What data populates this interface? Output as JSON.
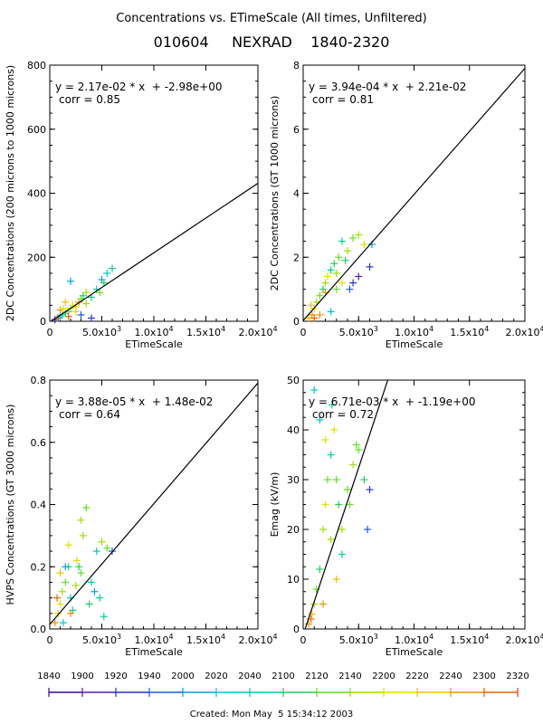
{
  "header": {
    "title": "Concentrations vs. ETimeScale (All times, Unfiltered)",
    "subtitle": "010604     NEXRAD    1840-2320"
  },
  "footer": {
    "created": "Created: Mon May  5 15:34:12 2003"
  },
  "colorbar": {
    "labels": [
      "1840",
      "1900",
      "1920",
      "1940",
      "2000",
      "2020",
      "2040",
      "2100",
      "2120",
      "2140",
      "2200",
      "2220",
      "2240",
      "2300",
      "2320"
    ],
    "colors": [
      "#3a0a8a",
      "#5a1ab0",
      "#2b2fd0",
      "#1a5ae8",
      "#00a0e0",
      "#00c8c8",
      "#00d0a0",
      "#20d060",
      "#60e020",
      "#a0e000",
      "#e0e000",
      "#f0c000",
      "#f09000",
      "#f06000",
      "#e83020"
    ]
  },
  "tick_x_labels": [
    "0",
    "5.0x10^3",
    "1.0x10^4",
    "1.5x10^4",
    "2.0x10^4"
  ],
  "chart_data": [
    {
      "type": "scatter",
      "ylabel": "2DC Concentrations (200 microns to 1000 microns)",
      "xlabel": "ETimeScale",
      "xlim": [
        0,
        20000
      ],
      "ylim": [
        0,
        800
      ],
      "yticks": [
        "0",
        "200",
        "400",
        "600",
        "800"
      ],
      "fit": {
        "slope": 0.0217,
        "intercept": -2.98
      },
      "equation": "y = 2.17e-02 * x  + -2.98e+00",
      "corr": "corr = 0.85",
      "points": [
        [
          500,
          5,
          2
        ],
        [
          800,
          10,
          3
        ],
        [
          1000,
          15,
          5
        ],
        [
          1200,
          20,
          6
        ],
        [
          1500,
          25,
          7
        ],
        [
          1800,
          30,
          8
        ],
        [
          2000,
          40,
          9
        ],
        [
          2200,
          50,
          10
        ],
        [
          2500,
          45,
          11
        ],
        [
          2800,
          60,
          12
        ],
        [
          3000,
          70,
          8
        ],
        [
          3200,
          80,
          7
        ],
        [
          3500,
          90,
          9
        ],
        [
          4000,
          75,
          6
        ],
        [
          4500,
          100,
          5
        ],
        [
          5000,
          130,
          4
        ],
        [
          5500,
          150,
          5
        ],
        [
          6000,
          165,
          6
        ],
        [
          2000,
          125,
          4
        ],
        [
          1500,
          60,
          11
        ],
        [
          1000,
          35,
          12
        ],
        [
          3000,
          20,
          3
        ],
        [
          4000,
          10,
          2
        ],
        [
          2500,
          30,
          10
        ],
        [
          1800,
          15,
          13
        ],
        [
          3500,
          55,
          9
        ],
        [
          5200,
          120,
          7
        ],
        [
          4800,
          90,
          8
        ],
        [
          700,
          8,
          12
        ],
        [
          1300,
          40,
          10
        ]
      ]
    },
    {
      "type": "scatter",
      "ylabel": "2DC Concentrations (GT 1000 microns)",
      "xlabel": "ETimeScale",
      "xlim": [
        0,
        20000
      ],
      "ylim": [
        0,
        8
      ],
      "yticks": [
        "0",
        "2",
        "4",
        "6",
        "8"
      ],
      "fit": {
        "slope": 0.000394,
        "intercept": 0.0221
      },
      "equation": "y = 3.94e-04 * x  + 2.21e-02",
      "corr": "corr = 0.81",
      "points": [
        [
          500,
          0.1,
          11
        ],
        [
          800,
          0.2,
          12
        ],
        [
          1000,
          0.4,
          10
        ],
        [
          1200,
          0.6,
          9
        ],
        [
          1500,
          0.8,
          8
        ],
        [
          1800,
          1.0,
          7
        ],
        [
          2000,
          1.2,
          9
        ],
        [
          2200,
          1.4,
          10
        ],
        [
          2500,
          1.6,
          6
        ],
        [
          2800,
          1.8,
          7
        ],
        [
          3000,
          1.5,
          9
        ],
        [
          3200,
          2.0,
          8
        ],
        [
          3500,
          2.5,
          6
        ],
        [
          4000,
          2.2,
          9
        ],
        [
          4500,
          2.6,
          8
        ],
        [
          5000,
          2.7,
          9
        ],
        [
          5500,
          2.4,
          10
        ],
        [
          6000,
          1.7,
          2
        ],
        [
          5000,
          1.4,
          1
        ],
        [
          4500,
          1.2,
          2
        ],
        [
          6200,
          2.4,
          4
        ],
        [
          2500,
          0.3,
          5
        ],
        [
          1500,
          0.2,
          12
        ],
        [
          700,
          0.5,
          11
        ],
        [
          3000,
          1.0,
          8
        ],
        [
          3800,
          1.9,
          7
        ],
        [
          2000,
          0.9,
          12
        ],
        [
          4200,
          1.0,
          3
        ],
        [
          1000,
          0.1,
          13
        ],
        [
          3500,
          1.2,
          10
        ]
      ]
    },
    {
      "type": "scatter",
      "ylabel": "HVPS Concentrations (GT 3000 microns)",
      "xlabel": "ETimeScale",
      "xlim": [
        0,
        20000
      ],
      "ylim": [
        0,
        0.8
      ],
      "yticks": [
        "0.0",
        "0.2",
        "0.4",
        "0.6",
        "0.8"
      ],
      "fit": {
        "slope": 3.88e-05,
        "intercept": 0.0148
      },
      "equation": "y = 3.88e-05 * x  + 1.48e-02",
      "corr": "corr = 0.64",
      "points": [
        [
          500,
          0.02,
          12
        ],
        [
          800,
          0.05,
          11
        ],
        [
          1000,
          0.08,
          10
        ],
        [
          1200,
          0.12,
          9
        ],
        [
          1500,
          0.15,
          8
        ],
        [
          1800,
          0.2,
          7
        ],
        [
          2000,
          0.1,
          5
        ],
        [
          2200,
          0.06,
          6
        ],
        [
          2500,
          0.14,
          9
        ],
        [
          2800,
          0.2,
          7
        ],
        [
          3000,
          0.18,
          8
        ],
        [
          3200,
          0.3,
          9
        ],
        [
          3500,
          0.39,
          8
        ],
        [
          4000,
          0.15,
          6
        ],
        [
          4500,
          0.25,
          5
        ],
        [
          5000,
          0.28,
          9
        ],
        [
          5500,
          0.26,
          8
        ],
        [
          6000,
          0.25,
          3
        ],
        [
          1500,
          0.2,
          4
        ],
        [
          1000,
          0.18,
          11
        ],
        [
          3000,
          0.35,
          9
        ],
        [
          2000,
          0.05,
          12
        ],
        [
          4800,
          0.1,
          6
        ],
        [
          3800,
          0.08,
          7
        ],
        [
          700,
          0.1,
          13
        ],
        [
          2600,
          0.22,
          10
        ],
        [
          1300,
          0.02,
          5
        ],
        [
          4300,
          0.12,
          4
        ],
        [
          5200,
          0.04,
          6
        ],
        [
          1800,
          0.27,
          10
        ]
      ]
    },
    {
      "type": "scatter",
      "ylabel": "Emag (kV/m)",
      "xlabel": "ETimeScale",
      "xlim": [
        0,
        20000
      ],
      "ylim": [
        0,
        50
      ],
      "yticks": [
        "0",
        "10",
        "20",
        "30",
        "40",
        "50"
      ],
      "fit": {
        "slope": 0.00671,
        "intercept": -1.19
      },
      "equation": "y = 6.71e-03 * x  + -1.19e+00",
      "corr": "corr = 0.72",
      "points": [
        [
          500,
          1,
          12
        ],
        [
          800,
          3,
          11
        ],
        [
          1000,
          5,
          9
        ],
        [
          1200,
          8,
          8
        ],
        [
          1500,
          12,
          7
        ],
        [
          1800,
          20,
          9
        ],
        [
          2000,
          25,
          10
        ],
        [
          2200,
          30,
          8
        ],
        [
          2500,
          35,
          6
        ],
        [
          2800,
          40,
          10
        ],
        [
          3000,
          30,
          8
        ],
        [
          3200,
          25,
          7
        ],
        [
          3500,
          20,
          9
        ],
        [
          4000,
          28,
          8
        ],
        [
          4500,
          33,
          9
        ],
        [
          5000,
          36,
          8
        ],
        [
          5500,
          30,
          7
        ],
        [
          6000,
          28,
          2
        ],
        [
          5800,
          20,
          3
        ],
        [
          1500,
          42,
          5
        ],
        [
          1000,
          48,
          5
        ],
        [
          2000,
          38,
          10
        ],
        [
          2500,
          18,
          9
        ],
        [
          3000,
          10,
          11
        ],
        [
          1800,
          5,
          12
        ],
        [
          4200,
          25,
          8
        ],
        [
          3500,
          15,
          6
        ],
        [
          700,
          2,
          13
        ],
        [
          2600,
          45,
          6
        ],
        [
          4800,
          37,
          8
        ]
      ]
    }
  ]
}
